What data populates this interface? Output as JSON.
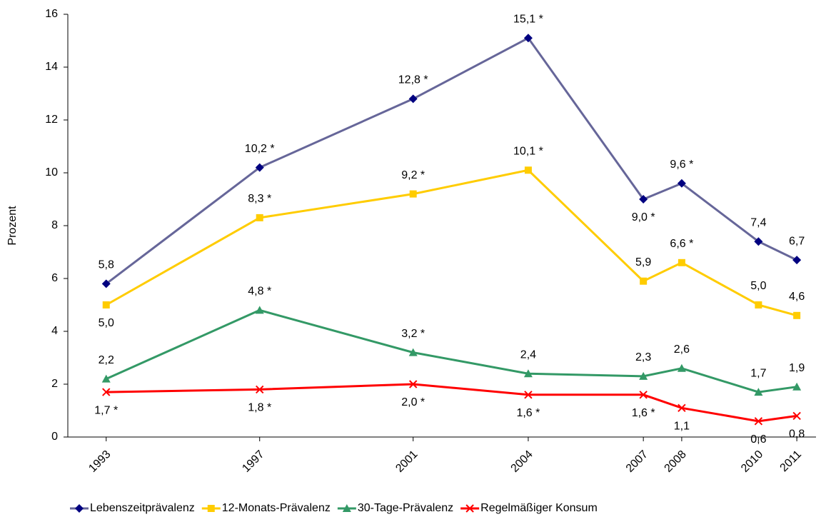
{
  "chart_data": {
    "type": "line",
    "y_label": "Prozent",
    "x": [
      1993,
      1997,
      2001,
      2004,
      2007,
      2008,
      2010,
      2011
    ],
    "xlim": [
      1992,
      2011.5
    ],
    "xticks": [
      1993,
      1997,
      2001,
      2004,
      2007,
      2008,
      2010,
      2011
    ],
    "ylim": [
      0,
      16
    ],
    "yticks": [
      0,
      2,
      4,
      6,
      8,
      10,
      12,
      14,
      16
    ],
    "grid": false,
    "legend": "bottom",
    "series": [
      {
        "name": "Lebenszeitprävalenz",
        "color": "#666699",
        "marker_color": "#000080",
        "marker": "diamond",
        "values": [
          5.8,
          10.2,
          12.8,
          15.1,
          9.0,
          9.6,
          7.4,
          6.7
        ],
        "value_labels": [
          "5,8",
          "10,2 *",
          "12,8 *",
          "15,1 *",
          "9,0 *",
          "9,6 *",
          "7,4",
          "6,7"
        ]
      },
      {
        "name": "12-Monats-Prävalenz",
        "color": "#ffcc00",
        "marker_color": "#ffcc00",
        "marker": "square",
        "values": [
          5.0,
          8.3,
          9.2,
          10.1,
          5.9,
          6.6,
          5.0,
          4.6
        ],
        "value_labels": [
          "5,0",
          "8,3 *",
          "9,2 *",
          "10,1 *",
          "5,9",
          "6,6 *",
          "5,0",
          "4,6"
        ]
      },
      {
        "name": "30-Tage-Prävalenz",
        "color": "#339966",
        "marker_color": "#339966",
        "marker": "triangle",
        "values": [
          2.2,
          4.8,
          3.2,
          2.4,
          2.3,
          2.6,
          1.7,
          1.9
        ],
        "value_labels": [
          "2,2",
          "4,8 *",
          "3,2 *",
          "2,4",
          "2,3",
          "2,6",
          "1,7",
          "1,9"
        ]
      },
      {
        "name": "Regelmäßiger Konsum",
        "color": "#ff0000",
        "marker_color": "#ff0000",
        "marker": "x",
        "values": [
          1.7,
          1.8,
          2.0,
          1.6,
          1.6,
          1.1,
          0.6,
          0.8
        ],
        "value_labels": [
          "1,7 *",
          "1,8 *",
          "2,0 *",
          "1,6 *",
          "1,6 *",
          "1,1",
          "0,6",
          "0,8"
        ]
      }
    ]
  }
}
